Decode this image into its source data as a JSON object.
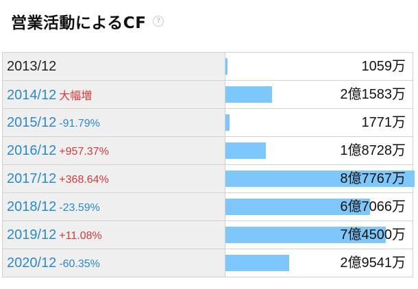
{
  "title": "営業活動によるCF",
  "help_icon_glyph": "?",
  "colors": {
    "bar": "#7dc7fb",
    "up": "#d23a3a",
    "down": "#2a89c9"
  },
  "rows": [
    {
      "year": "2013/12",
      "change": "",
      "dir": "none",
      "amount": "1059万",
      "value": 1059
    },
    {
      "year": "2014/12",
      "change": "大幅増",
      "dir": "up",
      "amount": "2億1583万",
      "value": 21583
    },
    {
      "year": "2015/12",
      "change": "-91.79%",
      "dir": "down",
      "amount": "1771万",
      "value": 1771
    },
    {
      "year": "2016/12",
      "change": "+957.37%",
      "dir": "up",
      "amount": "1億8728万",
      "value": 18728
    },
    {
      "year": "2017/12",
      "change": "+368.64%",
      "dir": "up",
      "amount": "8億7767万",
      "value": 87767
    },
    {
      "year": "2018/12",
      "change": "-23.59%",
      "dir": "down",
      "amount": "6億7066万",
      "value": 67066
    },
    {
      "year": "2019/12",
      "change": "+11.08%",
      "dir": "up",
      "amount": "7億4500万",
      "value": 74500
    },
    {
      "year": "2020/12",
      "change": "-60.35%",
      "dir": "down",
      "amount": "2億9541万",
      "value": 29541
    }
  ]
}
